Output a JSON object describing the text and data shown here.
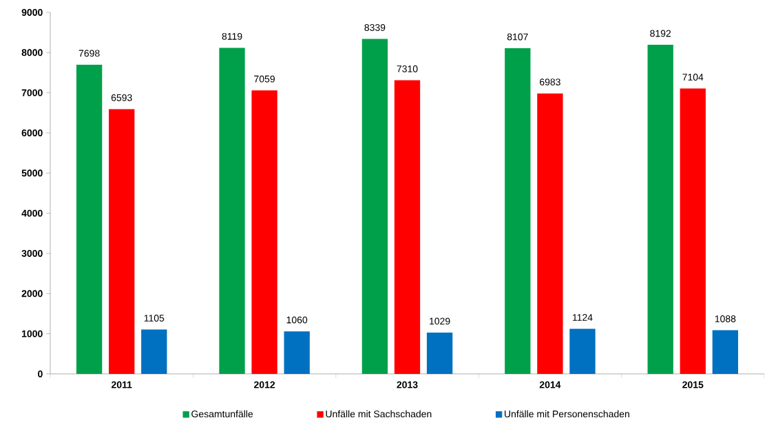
{
  "chart_data": {
    "type": "bar",
    "categories": [
      "2011",
      "2012",
      "2013",
      "2014",
      "2015"
    ],
    "series": [
      {
        "name": "Gesamtunfälle",
        "color": "#00a04a",
        "values": [
          7698,
          8119,
          8339,
          8107,
          8192
        ]
      },
      {
        "name": "Unfälle mit Sachschaden",
        "color": "#ff0000",
        "values": [
          6593,
          7059,
          7310,
          6983,
          7104
        ]
      },
      {
        "name": "Unfälle mit Personenschaden",
        "color": "#0070c0",
        "values": [
          1105,
          1060,
          1029,
          1124,
          1088
        ]
      }
    ],
    "ylim": [
      0,
      9000
    ],
    "yticks": [
      0,
      1000,
      2000,
      3000,
      4000,
      5000,
      6000,
      7000,
      8000,
      9000
    ],
    "data_labels": true,
    "legend": "bottom"
  }
}
